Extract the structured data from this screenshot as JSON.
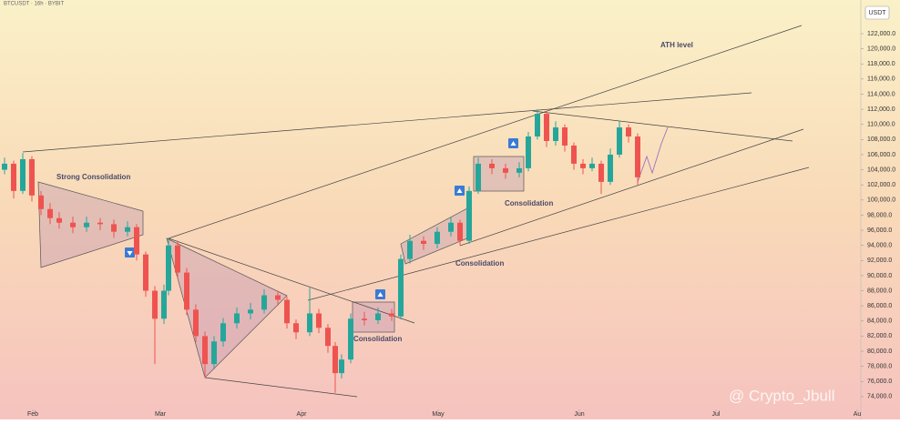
{
  "chart_data": {
    "type": "candlestick",
    "title": "BTCUSDT · 16h · BYBIT",
    "currency": "USDT",
    "watermark": "@ Crypto_Jbull",
    "annotations": [
      "Strong Consolidation",
      "Consolidation",
      "Consolidation",
      "Consolidation",
      "ATH  level"
    ],
    "up_color": "#26a69a",
    "down_color": "#ef5350",
    "x": [
      -6.2,
      -4.2,
      -2.2,
      -0.2,
      1.8,
      3.8,
      5.8,
      8.8,
      11.8,
      14.8,
      17.8,
      20.8,
      22.8,
      24.8,
      26.8,
      28.8,
      29.8,
      31.8,
      33.8,
      35.8,
      37.8,
      39.8,
      41.8,
      44.8,
      47.8,
      50.8,
      53.8,
      55.8,
      57.8,
      60.8,
      62.8,
      64.8,
      66.4,
      67.8,
      69.8,
      72.8,
      75.8,
      78.8,
      80.8,
      82.8,
      85.8,
      88.8,
      91.8,
      93.8,
      95.8,
      97.8,
      100.8,
      103.8,
      106.8,
      108.8,
      110.8,
      112.8,
      114.8,
      116.8,
      118.8,
      120.8,
      122.8,
      124.8,
      126.8,
      128.8,
      130.8,
      132.8
    ],
    "open": [
      104000,
      104800,
      101200,
      105400,
      100600,
      98800,
      97600,
      97000,
      96400,
      97000,
      96800,
      95800,
      96400,
      92800,
      88000,
      84300,
      88000,
      94000,
      90400,
      85500,
      82000,
      78300,
      81300,
      83700,
      85000,
      85500,
      87400,
      86800,
      83700,
      82500,
      85000,
      83100,
      80700,
      77100,
      78900,
      84300,
      84100,
      85000,
      84600,
      92200,
      94600,
      94200,
      95800,
      97000,
      94600,
      101200,
      104800,
      104200,
      103600,
      104200,
      108400,
      111400,
      107800,
      109600,
      107200,
      104800,
      104200,
      104800,
      102400,
      106000,
      109600,
      108400
    ],
    "high": [
      105600,
      105200,
      106200,
      105800,
      101200,
      99600,
      98400,
      97800,
      97800,
      97600,
      97400,
      97200,
      96800,
      93200,
      88600,
      88800,
      95000,
      94600,
      91000,
      86200,
      82600,
      82000,
      84400,
      85800,
      86400,
      88200,
      88000,
      87200,
      84200,
      88400,
      85600,
      83600,
      81200,
      79600,
      85000,
      85200,
      85800,
      85600,
      92800,
      95400,
      95200,
      96400,
      97800,
      97400,
      101800,
      105600,
      105400,
      104800,
      105000,
      109000,
      112000,
      111800,
      110400,
      110000,
      107600,
      105400,
      105600,
      105200,
      106800,
      110400,
      110000,
      108800
    ],
    "low": [
      103400,
      100200,
      100800,
      99800,
      98000,
      96800,
      96200,
      95600,
      95800,
      96000,
      95000,
      95200,
      92000,
      87200,
      78300,
      83600,
      87400,
      89600,
      84800,
      81200,
      76500,
      77600,
      80600,
      83000,
      84200,
      85000,
      86000,
      83000,
      81600,
      82000,
      82400,
      79800,
      74500,
      76400,
      78400,
      83400,
      83600,
      84000,
      84200,
      91600,
      93400,
      93600,
      95200,
      94000,
      94200,
      100800,
      103400,
      102800,
      103000,
      103800,
      108000,
      107000,
      107200,
      106400,
      104000,
      103400,
      103800,
      100800,
      102000,
      105600,
      107600,
      102000
    ],
    "close": [
      104800,
      101200,
      105400,
      100600,
      98800,
      97600,
      97000,
      96400,
      97000,
      96800,
      95800,
      96400,
      92800,
      88000,
      84300,
      88000,
      94000,
      90400,
      85500,
      82000,
      78300,
      81300,
      83700,
      85000,
      85500,
      87400,
      86800,
      83700,
      82500,
      85000,
      83100,
      80700,
      77100,
      78900,
      84300,
      84100,
      85000,
      84600,
      92200,
      94600,
      94200,
      95800,
      97000,
      94600,
      101200,
      104800,
      104200,
      103600,
      104200,
      108400,
      111400,
      107800,
      109600,
      107200,
      104800,
      104200,
      104800,
      102400,
      106000,
      109600,
      108400,
      103000
    ],
    "xlim": [
      -7.2,
      181.8
    ],
    "xticks": [
      {
        "value": 0,
        "label": "Feb"
      },
      {
        "value": 28,
        "label": "Mar"
      },
      {
        "value": 59,
        "label": "Apr"
      },
      {
        "value": 89,
        "label": "May"
      },
      {
        "value": 120,
        "label": "Jun"
      },
      {
        "value": 150,
        "label": "Jul"
      },
      {
        "value": 181,
        "label": "Au"
      }
    ],
    "ylim": [
      72300,
      125850
    ],
    "yticks": [
      {
        "value": 74000,
        "label": "74,000.0"
      },
      {
        "value": 76000,
        "label": "76,000.0"
      },
      {
        "value": 78000,
        "label": "78,000.0"
      },
      {
        "value": 80000,
        "label": "80,000.0"
      },
      {
        "value": 82000,
        "label": "82,000.0"
      },
      {
        "value": 84000,
        "label": "84,000.0"
      },
      {
        "value": 86000,
        "label": "86,000.0"
      },
      {
        "value": 88000,
        "label": "88,000.0"
      },
      {
        "value": 90000,
        "label": "90,000.0"
      },
      {
        "value": 92000,
        "label": "92,000.0"
      },
      {
        "value": 94000,
        "label": "94,000.0"
      },
      {
        "value": 96000,
        "label": "96,000.0"
      },
      {
        "value": 98000,
        "label": "98,000.0"
      },
      {
        "value": 100000,
        "label": "100,000.0"
      },
      {
        "value": 102000,
        "label": "102,000.0"
      },
      {
        "value": 104000,
        "label": "104,000.0"
      },
      {
        "value": 106000,
        "label": "106,000.0"
      },
      {
        "value": 108000,
        "label": "108,000.0"
      },
      {
        "value": 110000,
        "label": "110,000.0"
      },
      {
        "value": 112000,
        "label": "112,000.0"
      },
      {
        "value": 114000,
        "label": "114,000.0"
      },
      {
        "value": 116000,
        "label": "116,000.0"
      },
      {
        "value": 118000,
        "label": "118,000.0"
      },
      {
        "value": 120000,
        "label": "120,000.0"
      },
      {
        "value": 122000,
        "label": "122,000.0"
      }
    ]
  }
}
